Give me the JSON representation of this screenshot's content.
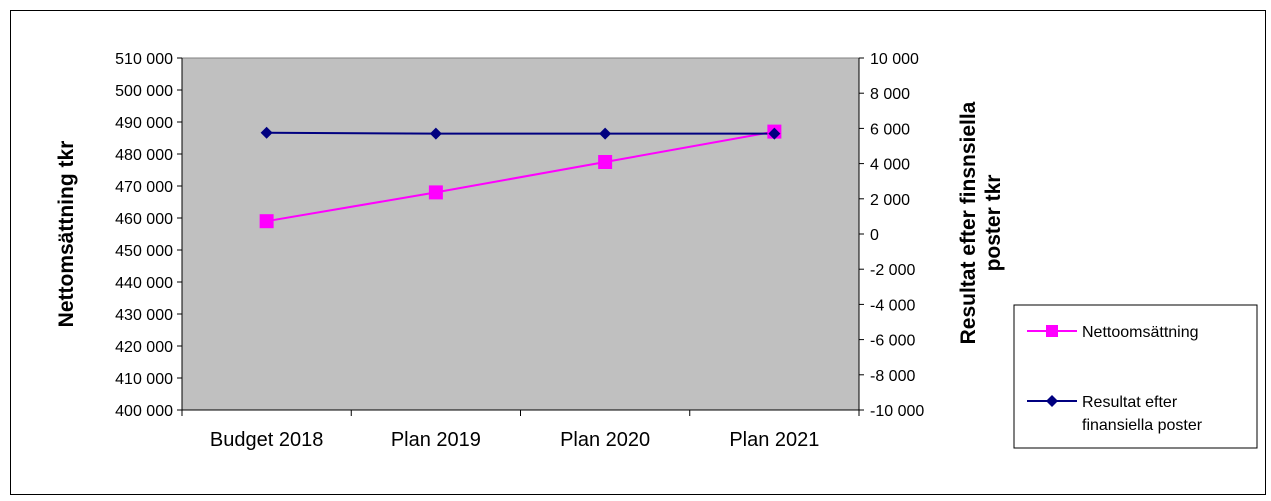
{
  "chart_data": {
    "type": "line",
    "categories": [
      "Budget 2018",
      "Plan 2019",
      "Plan 2020",
      "Plan 2021"
    ],
    "series": [
      {
        "name": "Nettoomsättning",
        "axis": "left",
        "color": "#FF00FF",
        "marker": "square",
        "values": [
          459000,
          468000,
          477500,
          487000
        ]
      },
      {
        "name": "Resultat efter finansiella poster",
        "axis": "right",
        "color": "#000080",
        "marker": "diamond",
        "values": [
          5750,
          5700,
          5700,
          5700
        ]
      }
    ],
    "y_left": {
      "label": "Nettomsättning tkr",
      "range": [
        400000,
        510000
      ],
      "ticks": [
        "400 000",
        "410 000",
        "420 000",
        "430 000",
        "440 000",
        "450 000",
        "460 000",
        "470 000",
        "480 000",
        "490 000",
        "500 000",
        "510 000"
      ]
    },
    "y_right": {
      "label_line1": "Resultat efter finsnsiella",
      "label_line2": "poster tkr",
      "range": [
        -10000,
        10000
      ],
      "ticks": [
        "-10 000",
        "-8 000",
        "-6 000",
        "-4 000",
        "-2 000",
        "0",
        "2 000",
        "4 000",
        "6 000",
        "8 000",
        "10 000"
      ]
    },
    "plot_background": "#C0C0C0",
    "grid": false,
    "legend_position": "right",
    "legend": [
      "Nettoomsättning",
      "Resultat efter",
      "finansiella poster"
    ]
  }
}
